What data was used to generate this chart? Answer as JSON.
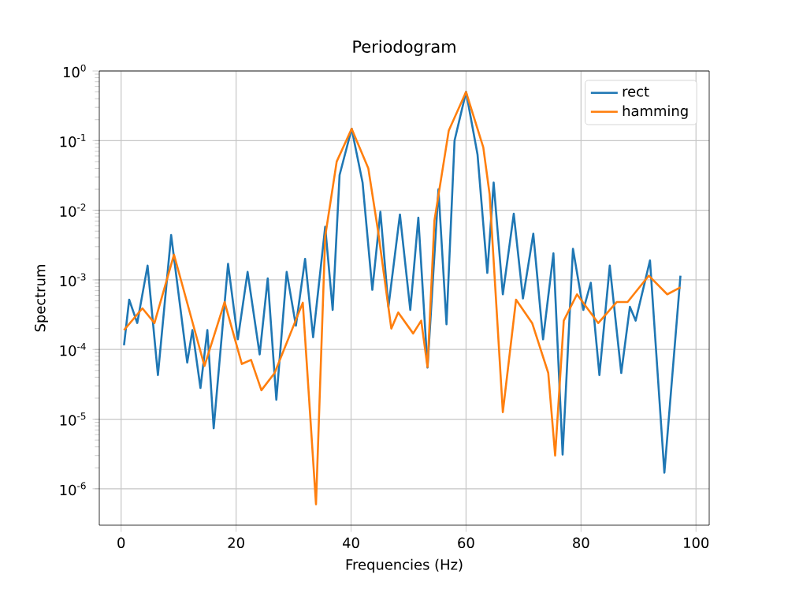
{
  "chart_data": {
    "type": "line",
    "title": "Periodogram",
    "xlabel": "Frequencies (Hz)",
    "ylabel": "Spectrum",
    "log": "y",
    "grid": true,
    "legend": "top right",
    "xlim": [
      -3.8,
      102.3
    ],
    "ylim": [
      3e-07,
      1
    ],
    "xticks": [
      0,
      20,
      40,
      60,
      80,
      100
    ],
    "yticks": [
      {
        "value": 1e-06,
        "label": "10$^{-6}$"
      },
      {
        "value": 1e-05,
        "label": "10$^{-5}$"
      },
      {
        "value": 0.0001,
        "label": "10$^{-4}$"
      },
      {
        "value": 0.001,
        "label": "10$^{-3}$"
      },
      {
        "value": 0.01,
        "label": "10$^{-2}$"
      },
      {
        "value": 0.1,
        "label": "10$^{-1}$"
      },
      {
        "value": 1,
        "label": "10$^{0}$"
      }
    ],
    "series": [
      {
        "name": "rect",
        "color": "#1f77b4",
        "x": [
          0.5,
          1.4,
          2.8,
          4.6,
          6.4,
          8.7,
          11.5,
          12.4,
          13.8,
          15.0,
          16.1,
          18.6,
          20.3,
          22.0,
          24.1,
          25.5,
          27.0,
          28.8,
          30.4,
          32.0,
          33.4,
          35.5,
          36.8,
          38,
          40.1,
          42,
          43.7,
          45.1,
          46.5,
          48.5,
          50.3,
          51.7,
          53.3,
          55.2,
          56.6,
          58,
          60.0,
          62,
          63.7,
          64.8,
          66.4,
          68.3,
          69.9,
          71.7,
          73.4,
          75.2,
          76.8,
          78.6,
          80.4,
          81.7,
          83.2,
          85.0,
          87.0,
          88.5,
          89.5,
          92.0,
          94.5,
          97.3
        ],
        "values": [
          0.000115,
          0.00052,
          0.00024,
          0.0016,
          4.3e-05,
          0.0044,
          6.5e-05,
          0.00019,
          2.8e-05,
          0.00019,
          7.4e-06,
          0.0017,
          0.00014,
          0.0013,
          8.5e-05,
          0.00105,
          1.9e-05,
          0.0013,
          0.00022,
          0.002,
          0.00015,
          0.0058,
          0.00037,
          0.032,
          0.148,
          0.025,
          0.00072,
          0.0095,
          0.00041,
          0.0087,
          0.00037,
          0.0078,
          5.5e-05,
          0.02,
          0.00023,
          0.1,
          0.5,
          0.063,
          0.00126,
          0.025,
          0.00062,
          0.0089,
          0.00054,
          0.0046,
          0.00014,
          0.0024,
          3.1e-06,
          0.0028,
          0.00037,
          0.00091,
          4.3e-05,
          0.0016,
          4.6e-05,
          0.00041,
          0.00026,
          0.0019,
          1.7e-06,
          0.00115
        ]
      },
      {
        "name": "hamming",
        "color": "#ff7f0e",
        "x": [
          0.5,
          3.7,
          5.8,
          9.2,
          14.5,
          18.0,
          21.0,
          22.6,
          24.4,
          26.7,
          31.6,
          33.9,
          35.5,
          37.5,
          40.1,
          43,
          44.7,
          47.0,
          48.2,
          50.8,
          52.2,
          53.3,
          54.5,
          57,
          60.0,
          63,
          64.1,
          66.4,
          68.7,
          71.5,
          74.3,
          75.5,
          77.0,
          79.3,
          83.0,
          86.2,
          88.1,
          91.8,
          95.0,
          97.3
        ],
        "values": [
          0.00019,
          0.00039,
          0.00024,
          0.0023,
          5.8e-05,
          0.00048,
          6.2e-05,
          7.1e-05,
          2.6e-05,
          4.6e-05,
          0.00047,
          6e-07,
          0.0042,
          0.05,
          0.148,
          0.04,
          0.005,
          0.0002,
          0.00034,
          0.00017,
          0.00026,
          5.6e-05,
          0.0071,
          0.14,
          0.5,
          0.08,
          0.017,
          1.26e-05,
          0.00052,
          0.00024,
          4.6e-05,
          3e-06,
          0.00026,
          0.00062,
          0.00024,
          0.00048,
          0.00048,
          0.00115,
          0.00062,
          0.00078
        ]
      }
    ]
  }
}
